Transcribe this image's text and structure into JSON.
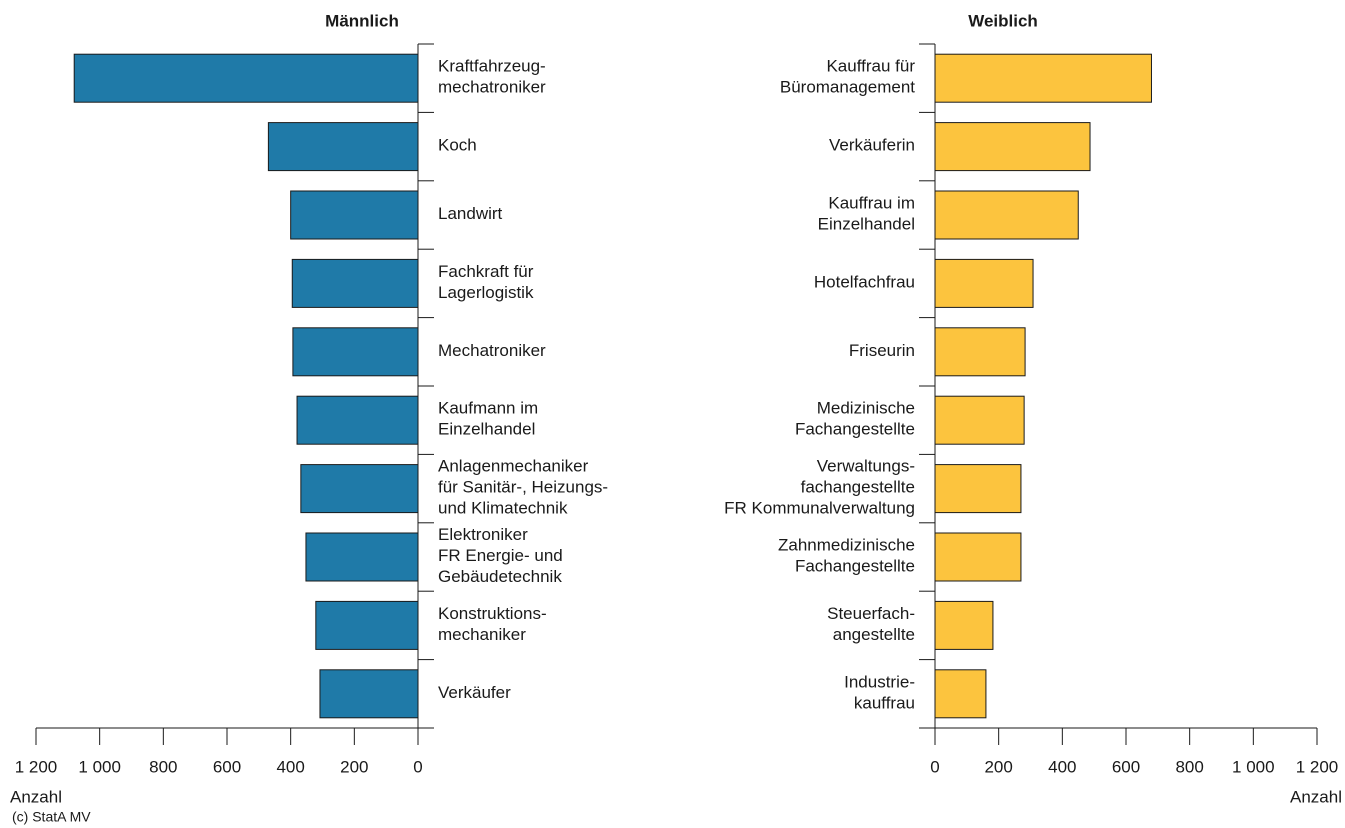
{
  "chart_data": [
    {
      "type": "barh",
      "title": "Männlich",
      "xlabel": "Anzahl",
      "xreversed": true,
      "color": "#1f7aa8",
      "categories": [
        "Kraftfahrzeug-\nmechatroniker",
        "Koch",
        "Landwirt",
        "Fachkraft für\nLagerlogistik",
        "Mechatroniker",
        "Kaufmann im\nEinzelhandel",
        "Anlagenmechaniker\nfür Sanitär-, Heizungs-\nund Klimatechnik",
        "Elektroniker\nFR Energie- und\nGebäudetechnik",
        "Konstruktions-\nmechaniker",
        "Verkäufer"
      ],
      "values": [
        1080,
        470,
        400,
        395,
        393,
        380,
        368,
        352,
        321,
        308
      ],
      "xlim": [
        0,
        1200
      ],
      "xticks": [
        0,
        200,
        400,
        600,
        800,
        {
          "value": 1000,
          "label": "1 000"
        },
        {
          "value": 1200,
          "label": "1 200"
        }
      ]
    },
    {
      "type": "barh",
      "title": "Weiblich",
      "xlabel": "Anzahl",
      "xreversed": false,
      "color": "#fcc43e",
      "categories": [
        "Kauffrau für\nBüromanagement",
        "Verkäuferin",
        "Kauffrau im\nEinzelhandel",
        "Hotelfachfrau",
        "Friseurin",
        "Medizinische\nFachangestellte",
        "Verwaltungs-\nfachangestellte\nFR Kommunalverwaltung",
        "Zahnmedizinische\nFachangestellte",
        "Steuerfach-\nangestellte",
        "Industrie-\nkauffrau"
      ],
      "values": [
        680,
        487,
        450,
        308,
        283,
        280,
        270,
        270,
        182,
        160
      ],
      "xlim": [
        0,
        1200
      ],
      "xticks": [
        0,
        200,
        400,
        600,
        800,
        {
          "value": 1000,
          "label": "1 000"
        },
        {
          "value": 1200,
          "label": "1 200"
        }
      ]
    }
  ],
  "source": "(c) StatA MV"
}
